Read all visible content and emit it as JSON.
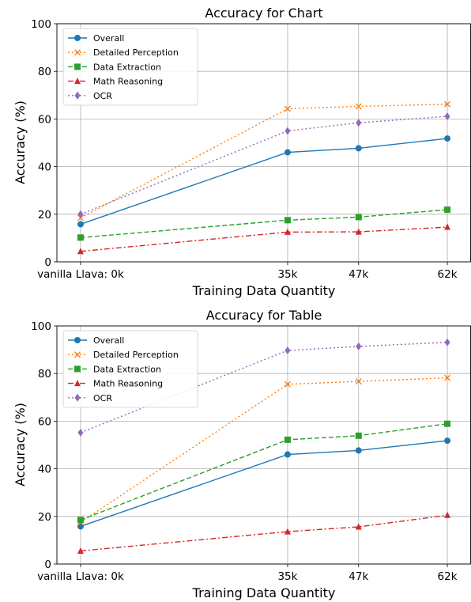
{
  "chart_data": [
    {
      "type": "line",
      "title": "Accuracy for Chart",
      "xlabel": "Training Data Quantity",
      "ylabel": "Accuracy (%)",
      "categories": [
        "vanilla Llava: 0k",
        "35k",
        "47k",
        "62k"
      ],
      "x": [
        0,
        35,
        47,
        62
      ],
      "ylim": [
        0,
        100
      ],
      "yticks": [
        "0",
        "20",
        "40",
        "60",
        "80",
        "100"
      ],
      "grid": true,
      "legend_position": "upper-left",
      "series": [
        {
          "name": "Overall",
          "values": [
            15.8,
            46.0,
            47.7,
            51.8
          ],
          "color": "#1f77b4",
          "marker": "circle",
          "linestyle": "solid"
        },
        {
          "name": "Detailed Perception",
          "values": [
            18.5,
            64.3,
            65.3,
            66.2
          ],
          "color": "#ff7f0e",
          "marker": "x",
          "linestyle": "dotted"
        },
        {
          "name": "Data Extraction",
          "values": [
            10.2,
            17.5,
            18.8,
            21.9
          ],
          "color": "#2ca02c",
          "marker": "square",
          "linestyle": "dashed"
        },
        {
          "name": "Math Reasoning",
          "values": [
            4.4,
            12.5,
            12.6,
            14.6
          ],
          "color": "#d62728",
          "marker": "triangle",
          "linestyle": "dashdot"
        },
        {
          "name": "OCR",
          "values": [
            20.0,
            55.0,
            58.4,
            61.1
          ],
          "color": "#9467bd",
          "marker": "diamond",
          "linestyle": "dotted"
        }
      ]
    },
    {
      "type": "line",
      "title": "Accuracy for Table",
      "xlabel": "Training Data Quantity",
      "ylabel": "Accuracy (%)",
      "categories": [
        "vanilla Llava: 0k",
        "35k",
        "47k",
        "62k"
      ],
      "x": [
        0,
        35,
        47,
        62
      ],
      "ylim": [
        0,
        100
      ],
      "yticks": [
        "0",
        "20",
        "40",
        "60",
        "80",
        "100"
      ],
      "grid": true,
      "legend_position": "upper-left",
      "series": [
        {
          "name": "Overall",
          "values": [
            15.8,
            46.0,
            47.7,
            51.8
          ],
          "color": "#1f77b4",
          "marker": "circle",
          "linestyle": "solid"
        },
        {
          "name": "Detailed Perception",
          "values": [
            17.5,
            75.5,
            76.7,
            78.2
          ],
          "color": "#ff7f0e",
          "marker": "x",
          "linestyle": "dotted"
        },
        {
          "name": "Data Extraction",
          "values": [
            18.5,
            52.2,
            53.9,
            58.9
          ],
          "color": "#2ca02c",
          "marker": "square",
          "linestyle": "dashed"
        },
        {
          "name": "Math Reasoning",
          "values": [
            5.5,
            13.6,
            15.6,
            20.5
          ],
          "color": "#d62728",
          "marker": "triangle",
          "linestyle": "dashdot"
        },
        {
          "name": "OCR",
          "values": [
            55.2,
            89.7,
            91.4,
            93.1
          ],
          "color": "#9467bd",
          "marker": "diamond",
          "linestyle": "dotted"
        }
      ]
    }
  ]
}
